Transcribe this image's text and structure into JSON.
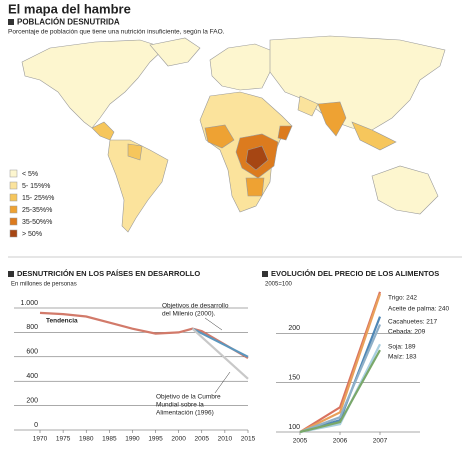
{
  "title": "El mapa del hambre",
  "map": {
    "title": "POBLACIÓN DESNUTRIDA",
    "subtitle": "Porcentaje de población que tiene una nutrición insuficiente, según la FAO.",
    "legend": [
      {
        "label": "< 5%",
        "color": "#fdf6cf"
      },
      {
        "label": "5- 15%%",
        "color": "#fbe39c"
      },
      {
        "label": "15- 25%%",
        "color": "#f6c65c"
      },
      {
        "label": "25-35%%",
        "color": "#eea233"
      },
      {
        "label": "35-50%%",
        "color": "#dc7b1e"
      },
      {
        "label": "> 50%",
        "color": "#a64613"
      }
    ]
  },
  "chart_data": [
    {
      "type": "line",
      "title": "DESNUTRICIÓN EN LOS PAÍSES EN DESARROLLO",
      "subtitle": "En millones de personas",
      "xlim": [
        1970,
        2015
      ],
      "xticks": [
        1970,
        1975,
        1980,
        1985,
        1990,
        1995,
        2000,
        2005,
        2010,
        2015
      ],
      "ylim": [
        0,
        1000
      ],
      "yticks": [
        0,
        200,
        400,
        600,
        800,
        {
          "value": 1000,
          "label": "1.000"
        }
      ],
      "grid": true,
      "series": [
        {
          "name": "Tendencia",
          "color": "#d27a6a",
          "x": [
            1970,
            1975,
            1980,
            1985,
            1990,
            1995,
            2000,
            2003,
            2005,
            2010,
            2015
          ],
          "values": [
            960,
            950,
            930,
            880,
            830,
            790,
            800,
            830,
            810,
            700,
            590
          ]
        },
        {
          "color": "#5b96bd",
          "x": [
            2003,
            2015
          ],
          "values": [
            830,
            600
          ]
        },
        {
          "color": "#c8c8c8",
          "x": [
            2003,
            2015
          ],
          "values": [
            830,
            420
          ]
        }
      ],
      "annotations": [
        {
          "lines": [
            "Objetivos de desarrollo",
            "del Milenio (2000)."
          ]
        },
        {
          "lines": [
            "Objetivo de la Cumbre",
            "Mundial sobre la",
            "Alimentación (1996)"
          ]
        }
      ]
    },
    {
      "type": "line",
      "title": "EVOLUCIÓN DEL PRECIO DE LOS ALIMENTOS",
      "subtitle": "2005=100",
      "xlim": [
        2005,
        2007
      ],
      "xticks": [
        2005,
        2006,
        2007
      ],
      "ylim": [
        100,
        250
      ],
      "yticks": [
        100,
        150,
        200
      ],
      "grid": true,
      "series": [
        {
          "name": "Trigo",
          "end_label": "Trigo: 242",
          "color": "#d9735f",
          "x": [
            2005,
            2006,
            2007
          ],
          "values": [
            100,
            125,
            242
          ]
        },
        {
          "name": "Aceite de palma",
          "end_label": "Aceite de palma: 240",
          "color": "#e9a05a",
          "x": [
            2005,
            2006,
            2007
          ],
          "values": [
            100,
            120,
            240
          ]
        },
        {
          "name": "Cacahuetes",
          "end_label": "Cacahuetes: 217",
          "color": "#4f87b5",
          "x": [
            2005,
            2006,
            2007
          ],
          "values": [
            100,
            112,
            217
          ]
        },
        {
          "name": "Cebada",
          "end_label": "Cebada: 209",
          "color": "#8fb0c8",
          "x": [
            2005,
            2006,
            2007
          ],
          "values": [
            100,
            115,
            209
          ]
        },
        {
          "name": "Soja",
          "end_label": "Soja: 189",
          "color": "#a9cfe0",
          "x": [
            2005,
            2006,
            2007
          ],
          "values": [
            100,
            108,
            189
          ]
        },
        {
          "name": "Maíz",
          "end_label": "Maíz: 183",
          "color": "#7aa86a",
          "x": [
            2005,
            2006,
            2007
          ],
          "values": [
            100,
            110,
            183
          ]
        }
      ]
    }
  ]
}
